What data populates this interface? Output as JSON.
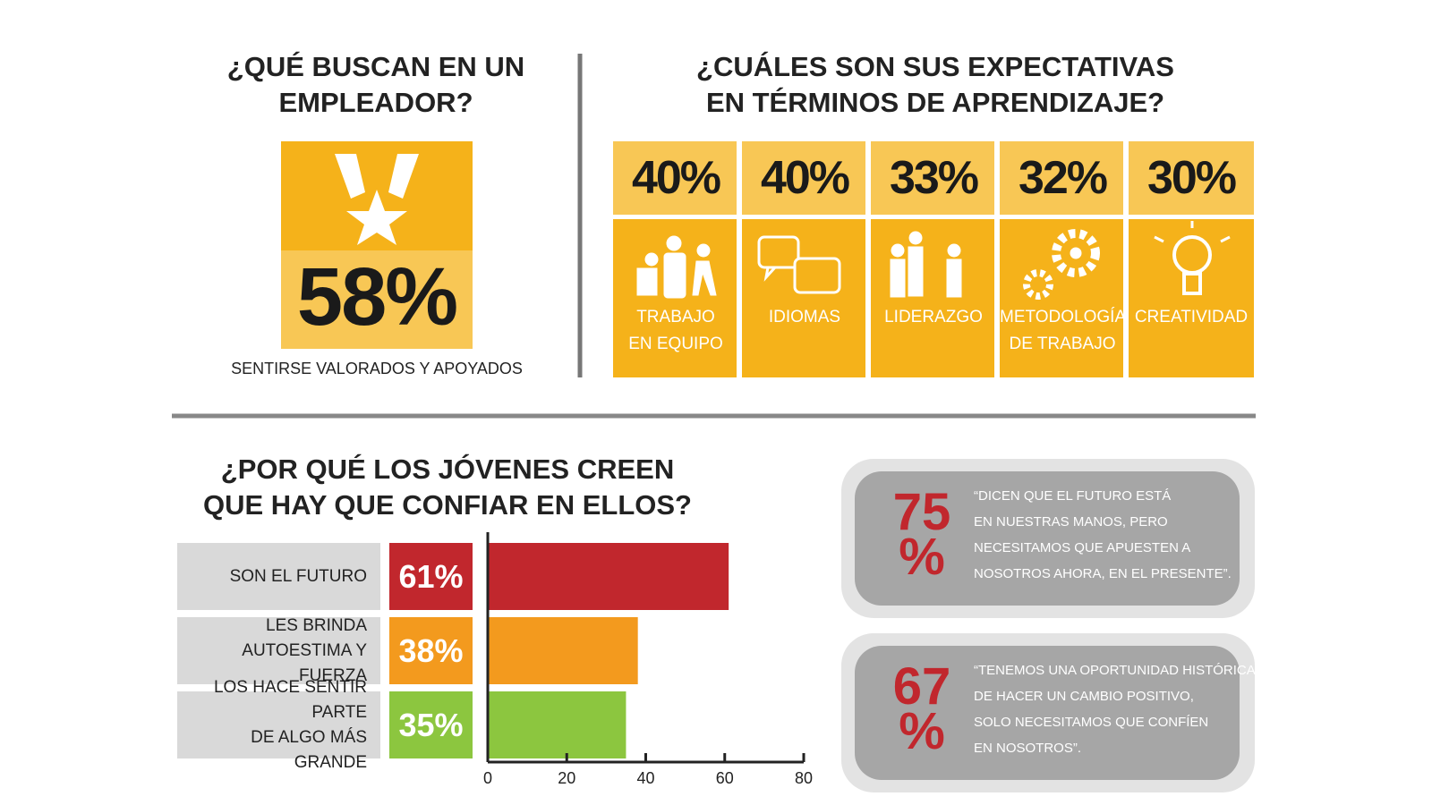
{
  "employer": {
    "title": [
      "¿QUÉ BUSCAN EN UN",
      "EMPLEADOR?"
    ],
    "value": "58%",
    "caption": "SENTIRSE VALORADOS Y APOYADOS"
  },
  "learning": {
    "title": [
      "¿CUÁLES SON SUS EXPECTATIVAS",
      "EN TÉRMINOS DE APRENDIZAJE?"
    ],
    "items": [
      {
        "value": "40%",
        "label": [
          "TRABAJO",
          "EN EQUIPO"
        ]
      },
      {
        "value": "40%",
        "label": [
          "IDIOMAS"
        ]
      },
      {
        "value": "33%",
        "label": [
          "LIDERAZGO"
        ]
      },
      {
        "value": "32%",
        "label": [
          "METODOLOGÍA",
          "DE TRABAJO"
        ]
      },
      {
        "value": "30%",
        "label": [
          "CREATIVIDAD"
        ]
      }
    ]
  },
  "chart_data": {
    "type": "bar",
    "orientation": "horizontal",
    "title": [
      "¿POR QUÉ LOS JÓVENES CREEN",
      "QUE HAY QUE CONFIAR EN ELLOS?"
    ],
    "categories": [
      [
        "SON EL FUTURO"
      ],
      [
        "LES BRINDA",
        "AUTOESTIMA Y FUERZA"
      ],
      [
        "LOS HACE SENTIR PARTE",
        "DE ALGO MÁS GRANDE"
      ]
    ],
    "values": [
      61,
      38,
      35
    ],
    "value_labels": [
      "61%",
      "38%",
      "35%"
    ],
    "colors": [
      "#c1272d",
      "#f39a1e",
      "#8cc63f"
    ],
    "xlim": [
      0,
      80
    ],
    "xticks": [
      0,
      20,
      40,
      60,
      80
    ]
  },
  "quotes": [
    {
      "value": [
        "75",
        "%"
      ],
      "text": [
        "“DICEN QUE EL FUTURO ESTÁ",
        "EN NUESTRAS MANOS, PERO",
        "NECESITAMOS QUE APUESTEN A",
        "NOSOTROS AHORA, EN EL PRESENTE”."
      ]
    },
    {
      "value": [
        "67",
        "%"
      ],
      "text": [
        "“TENEMOS UNA OPORTUNIDAD HISTÓRICA",
        "DE HACER UN CAMBIO POSITIVO,",
        "SOLO NECESITAMOS QUE CONFÍEN",
        "EN NOSOTROS”."
      ]
    }
  ]
}
